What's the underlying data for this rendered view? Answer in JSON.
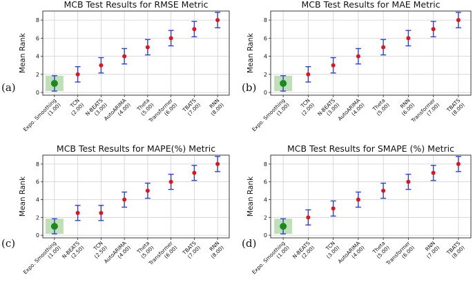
{
  "chart_data": [
    {
      "type": "scatter",
      "panel_label": "(a)",
      "title": "MCB Test Results for RMSE Metric",
      "ylabel": "Mean Rank",
      "ylim": [
        -0.3,
        9
      ],
      "yticks": [
        0,
        2,
        4,
        6,
        8
      ],
      "grid": true,
      "categories": [
        "Expo. Smoothing\n(1.00)",
        "TCN\n(2.00)",
        "N-BEATS\n(3.00)",
        "AutoARIMA\n(4.00)",
        "Theta\n(5.00)",
        "Transformer\n(6.00)",
        "TBATS\n(7.00)",
        "RNN\n(8.00)"
      ],
      "values": [
        1,
        2,
        3,
        4,
        5,
        6,
        7,
        8
      ],
      "error_half_width": 0.85,
      "best_index": 0
    },
    {
      "type": "scatter",
      "panel_label": "(b)",
      "title": "MCB Test Results for MAE Metric",
      "ylabel": "Mean Rank",
      "ylim": [
        -0.3,
        9
      ],
      "yticks": [
        0,
        2,
        4,
        6,
        8
      ],
      "grid": true,
      "categories": [
        "Expo. Smoothing\n(1.00)",
        "TCN\n(2.00)",
        "N-BEATS\n(3.00)",
        "AutoARIMA\n(4.00)",
        "Theta\n(5.00)",
        "RNN\n(6.00)",
        "Transformer\n(7.00)",
        "TBATS\n(8.00)"
      ],
      "values": [
        1,
        2,
        3,
        4,
        5,
        6,
        7,
        8
      ],
      "error_half_width": 0.85,
      "best_index": 0
    },
    {
      "type": "scatter",
      "panel_label": "(c)",
      "title": "MCB Test Results for MAPE(%) Metric",
      "ylabel": "Mean Rank",
      "ylim": [
        -0.3,
        9
      ],
      "yticks": [
        0,
        2,
        4,
        6,
        8
      ],
      "grid": true,
      "categories": [
        "Expo. Smoothing\n(1.00)",
        "N-BEATS\n(2.50)",
        "TCN\n(2.50)",
        "AutoARIMA\n(4.00)",
        "Theta\n(5.00)",
        "Transformer\n(6.00)",
        "TBATS\n(7.00)",
        "RNN\n(8.00)"
      ],
      "values": [
        1,
        2.5,
        2.5,
        4,
        5,
        6,
        7,
        8
      ],
      "error_half_width": 0.85,
      "best_index": 0
    },
    {
      "type": "scatter",
      "panel_label": "(d)",
      "title": "MCB Test Results for SMAPE (%) Metric",
      "ylabel": "Mean Rank",
      "ylim": [
        -0.3,
        9
      ],
      "yticks": [
        0,
        2,
        4,
        6,
        8
      ],
      "grid": true,
      "categories": [
        "Expo. Smoothing\n(1.00)",
        "N-BEATS\n(2.00)",
        "TCN\n(3.00)",
        "AutoARIMA\n(4.00)",
        "Theta\n(5.00)",
        "Transformer\n(6.00)",
        "RNN\n(7.00)",
        "TBATS\n(8.00)"
      ],
      "values": [
        1,
        2,
        3,
        4,
        5,
        6,
        7,
        8
      ],
      "error_half_width": 0.85,
      "best_index": 0
    }
  ],
  "colors": {
    "point": "#e8101b",
    "best_point": "#1a8a1a",
    "best_box": "#b7dbb0",
    "errorbar": "#2a3fd6",
    "grid": "#d0d0d0",
    "axis": "#222222"
  }
}
